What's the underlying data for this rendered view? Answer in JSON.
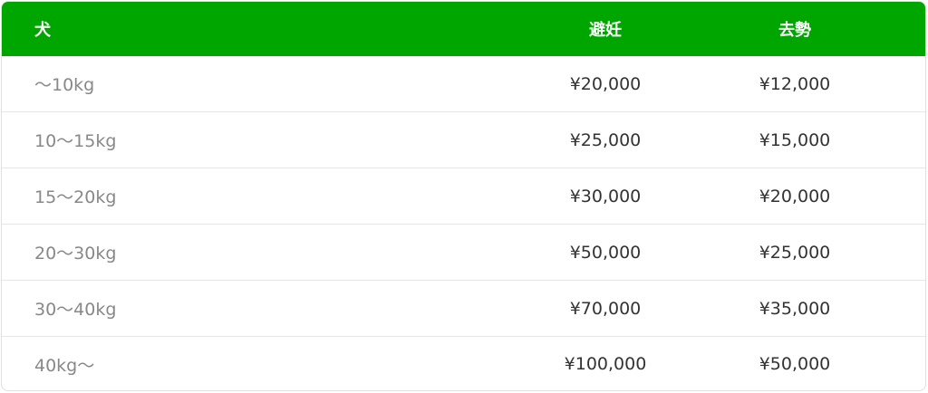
{
  "table": {
    "header": [
      "犬",
      "避妊",
      "去勢"
    ],
    "rows": [
      [
        "～10kg",
        "¥20,000",
        "¥12,000"
      ],
      [
        "10～15kg",
        "¥25,000",
        "¥15,000"
      ],
      [
        "15～20kg",
        "¥30,000",
        "¥20,000"
      ],
      [
        "20～30kg",
        "¥50,000",
        "¥25,000"
      ],
      [
        "30～40kg",
        "¥70,000",
        "¥35,000"
      ],
      [
        "40kg～",
        "¥100,000",
        "¥50,000"
      ]
    ]
  }
}
